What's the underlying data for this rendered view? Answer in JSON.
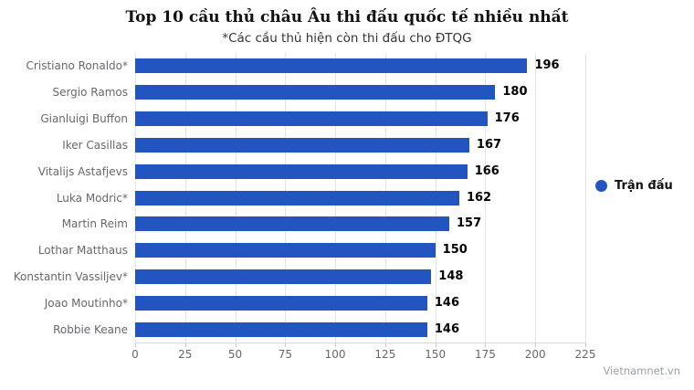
{
  "header": {
    "title": "Top 10 cầu thủ châu Âu thi đấu quốc tế nhiều nhất",
    "subtitle": "*Các cầu thủ hiện còn thi đấu cho ĐTQG"
  },
  "chart_data": {
    "type": "bar",
    "orientation": "horizontal",
    "title": "Top 10 cầu thủ châu Âu thi đấu quốc tế nhiều nhất",
    "subtitle": "*Các cầu thủ hiện còn thi đấu cho ĐTQG",
    "categories": [
      "Cristiano Ronaldo*",
      "Sergio Ramos",
      "Gianluigi Buffon",
      "Iker Casillas",
      "Vitalijs Astafjevs",
      "Luka Modric*",
      "Martin Reim",
      "Lothar Matthaus",
      "Konstantin Vassiljev*",
      "Joao Moutinho*",
      "Robbie Keane"
    ],
    "series": [
      {
        "name": "Trận đấu",
        "values": [
          196,
          180,
          176,
          167,
          166,
          162,
          157,
          150,
          148,
          146,
          146
        ]
      }
    ],
    "xticks": [
      0,
      25,
      50,
      75,
      100,
      125,
      150,
      175,
      200,
      225
    ],
    "xlim": [
      0,
      225
    ],
    "xlabel": "",
    "ylabel": "",
    "grid": true,
    "legend_position": "right",
    "bar_color": "#2255bf",
    "value_labels_shown": true
  },
  "legend": {
    "label": "Trận đấu",
    "dot_color": "#2255bf"
  },
  "watermark": "Vietnamnet.vn"
}
